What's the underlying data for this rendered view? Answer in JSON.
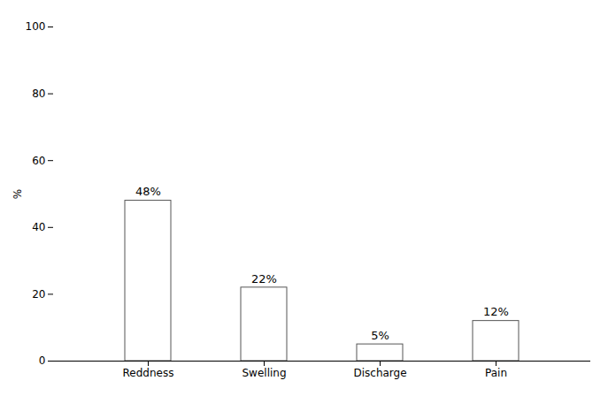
{
  "chart_data": {
    "type": "bar",
    "categories": [
      "Reddness",
      "Swelling",
      "Discharge",
      "Pain"
    ],
    "values": [
      48,
      22,
      5,
      12
    ],
    "value_labels": [
      "48%",
      "22%",
      "5%",
      "12%"
    ],
    "data_labels": true,
    "color": "#ffffff",
    "ylabel": "%",
    "ylim": [
      0,
      100
    ],
    "yticks": [
      0,
      20,
      40,
      60,
      80,
      100
    ],
    "grid": false
  }
}
